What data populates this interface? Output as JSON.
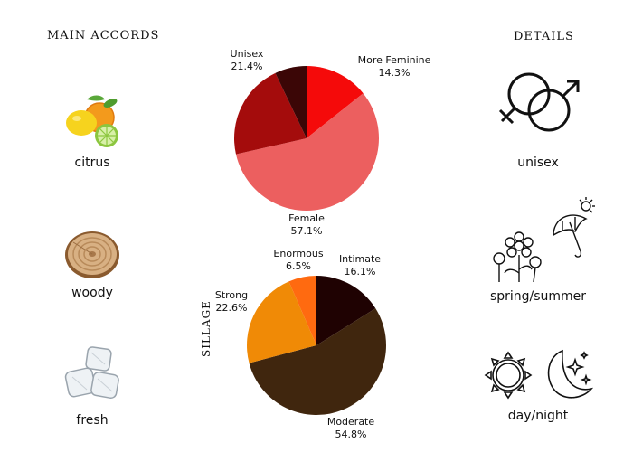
{
  "headings": {
    "main_accords": "MAIN ACCORDS",
    "details": "DETAILS"
  },
  "accords": [
    {
      "label": "citrus",
      "icon": "citrus-fruits-icon"
    },
    {
      "label": "woody",
      "icon": "wood-slice-icon"
    },
    {
      "label": "fresh",
      "icon": "ice-cubes-icon"
    }
  ],
  "details": [
    {
      "label": "unisex",
      "icon": "gender-symbols-icon"
    },
    {
      "label": "spring/summer",
      "icon": "flowers-umbrella-sun-icon"
    },
    {
      "label": "day/night",
      "icon": "sun-moon-icon"
    }
  ],
  "chart_data": [
    {
      "type": "pie",
      "title": "",
      "slices": [
        {
          "label": "More Feminine",
          "value": 14.3,
          "display": "14.3%",
          "color": "#f50a0a"
        },
        {
          "label": "Female",
          "value": 57.1,
          "display": "57.1%",
          "color": "#ec5f5f"
        },
        {
          "label": "Unisex",
          "value": 21.4,
          "display": "21.4%",
          "color": "#a40c0c"
        },
        {
          "label": "",
          "value": 7.1,
          "display": "",
          "color": "#3b0606"
        }
      ]
    },
    {
      "type": "pie",
      "title": "SILLAGE",
      "slices": [
        {
          "label": "Intimate",
          "value": 16.1,
          "display": "16.1%",
          "color": "#1f0202"
        },
        {
          "label": "Moderate",
          "value": 54.8,
          "display": "54.8%",
          "color": "#40260e"
        },
        {
          "label": "Strong",
          "value": 22.6,
          "display": "22.6%",
          "color": "#f08a06"
        },
        {
          "label": "Enormous",
          "value": 6.5,
          "display": "6.5%",
          "color": "#ff6a10"
        }
      ]
    }
  ]
}
